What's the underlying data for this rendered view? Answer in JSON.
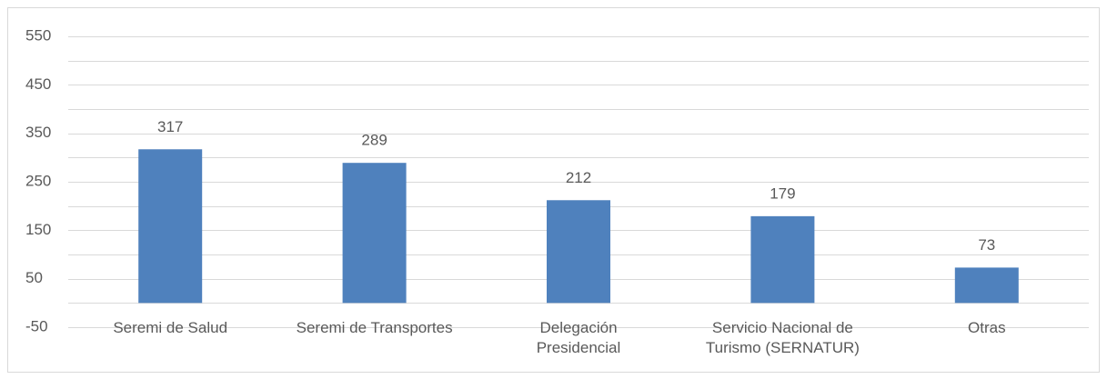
{
  "chart_data": {
    "type": "bar",
    "categories": [
      "Seremi de Salud",
      "Seremi de Transportes",
      "Delegación Presidencial",
      "Servicio Nacional de Turismo (SERNATUR)",
      "Otras"
    ],
    "values": [
      317,
      289,
      212,
      179,
      73
    ],
    "color": "#4f81bd",
    "ylim": [
      -50,
      550
    ],
    "yticks": [
      -50,
      50,
      150,
      250,
      350,
      450,
      550
    ],
    "ygrid": [
      -50,
      0,
      50,
      100,
      150,
      200,
      250,
      300,
      350,
      400,
      450,
      500,
      550
    ],
    "grid": true
  }
}
